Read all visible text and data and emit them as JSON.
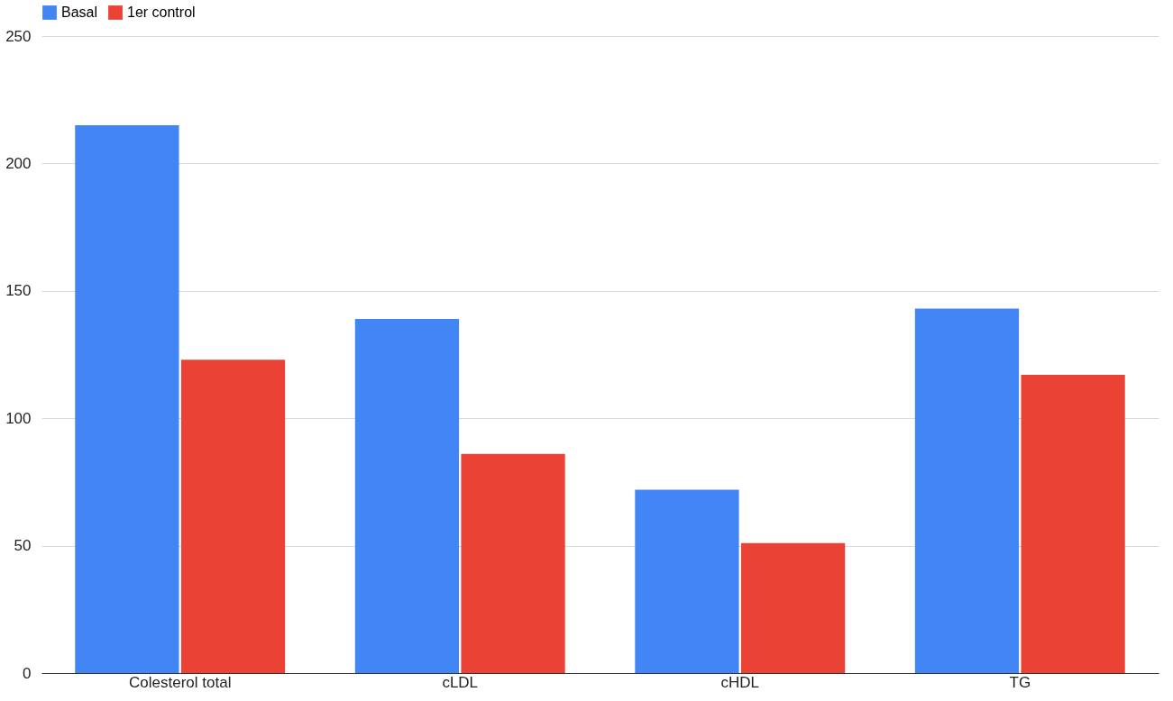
{
  "chart_data": {
    "type": "bar",
    "categories": [
      "Colesterol total",
      "cLDL",
      "cHDL",
      "TG"
    ],
    "series": [
      {
        "name": "Basal",
        "color": "#4285f4",
        "values": [
          215,
          139,
          72,
          143
        ]
      },
      {
        "name": "1er control",
        "color": "#ea4335",
        "values": [
          123,
          86,
          51,
          117
        ]
      }
    ],
    "ylim": [
      0,
      250
    ],
    "yticks": [
      0,
      50,
      100,
      150,
      200,
      250
    ],
    "grid": "y",
    "legend": "top"
  }
}
